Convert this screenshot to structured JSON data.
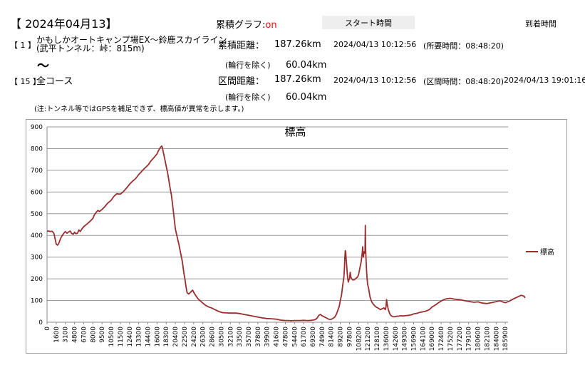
{
  "header": {
    "date_title": "【 2024年04月13】",
    "cumulative_graph_label": "累積グラフ:",
    "cumulative_graph_value": "on",
    "start_time_label": "スタート時間",
    "arrival_time_label": "到着時間"
  },
  "section_start": {
    "number": "【 1 】",
    "name_line1": "かもしかオートキャンプ場EX～鈴鹿スカイライン",
    "name_line2": "(武平トンネル：峠：815m)"
  },
  "tilde": "～",
  "section_end": {
    "number": "【 15 】",
    "name": "全コース"
  },
  "cumulative": {
    "distance_label": "累積距離：",
    "distance_value": "187.26km",
    "start_datetime": "2024/04/13 10:12:56",
    "required_time": "(所要時間：08:48:20)",
    "excl_label": "(輪行を除く)",
    "excl_value": "60.04km"
  },
  "section": {
    "distance_label": "区間距離：",
    "distance_value": "187.26km",
    "start_datetime": "2024/04/13 10:12:56",
    "section_time": "(区間時間：08:48:20)",
    "arrival_datetime": "2024/04/13 19:01:16",
    "excl_label": "(輪行を除く)",
    "excl_value": "60.04km"
  },
  "note": "(注:トンネル等ではGPSを補足できず、標高値が異常を示します。)",
  "chart_data": {
    "type": "line",
    "title": "標高",
    "xlabel": "",
    "ylabel": "",
    "ylim": [
      0,
      900
    ],
    "yticks": [
      0,
      100,
      200,
      300,
      400,
      500,
      600,
      700,
      800,
      900
    ],
    "xlim": [
      0,
      190000
    ],
    "xticks": [
      0,
      1600,
      3100,
      4800,
      6700,
      8000,
      9500,
      10500,
      11500,
      12400,
      13300,
      14400,
      16000,
      18300,
      20400,
      22500,
      24200,
      26300,
      28600,
      30500,
      32100,
      33500,
      35700,
      37800,
      39900,
      41600,
      47800,
      54400,
      61700,
      69300,
      74900,
      81400,
      89200,
      97800,
      108200,
      121200,
      128100,
      136000,
      142600,
      149300,
      156900,
      164100,
      169000,
      172400,
      175200,
      177200,
      179100,
      180600,
      182100,
      184000,
      185900
    ],
    "grid": "horizontal",
    "legend_position": "right",
    "line_color": "#9b2d2d",
    "series": [
      {
        "name": "標高",
        "points": [
          [
            0,
            420
          ],
          [
            300,
            420
          ],
          [
            600,
            418
          ],
          [
            900,
            419
          ],
          [
            1200,
            410
          ],
          [
            1400,
            385
          ],
          [
            1600,
            360
          ],
          [
            1800,
            355
          ],
          [
            2000,
            362
          ],
          [
            2300,
            385
          ],
          [
            2600,
            400
          ],
          [
            2900,
            412
          ],
          [
            3100,
            418
          ],
          [
            3400,
            410
          ],
          [
            3700,
            416
          ],
          [
            4000,
            420
          ],
          [
            4300,
            408
          ],
          [
            4600,
            406
          ],
          [
            4800,
            415
          ],
          [
            5100,
            408
          ],
          [
            5400,
            410
          ],
          [
            5700,
            425
          ],
          [
            6000,
            418
          ],
          [
            6400,
            432
          ],
          [
            6700,
            440
          ],
          [
            7000,
            448
          ],
          [
            7300,
            456
          ],
          [
            7700,
            468
          ],
          [
            8000,
            478
          ],
          [
            8200,
            492
          ],
          [
            8500,
            505
          ],
          [
            8800,
            515
          ],
          [
            9100,
            510
          ],
          [
            9500,
            520
          ],
          [
            9800,
            532
          ],
          [
            10100,
            548
          ],
          [
            10500,
            562
          ],
          [
            10800,
            580
          ],
          [
            11100,
            592
          ],
          [
            11500,
            590
          ],
          [
            11800,
            602
          ],
          [
            12100,
            618
          ],
          [
            12400,
            636
          ],
          [
            12700,
            650
          ],
          [
            13000,
            662
          ],
          [
            13300,
            680
          ],
          [
            13600,
            692
          ],
          [
            13900,
            705
          ],
          [
            14200,
            716
          ],
          [
            14500,
            726
          ],
          [
            14800,
            738
          ],
          [
            15100,
            748
          ],
          [
            15400,
            756
          ],
          [
            15700,
            766
          ],
          [
            16000,
            776
          ],
          [
            16300,
            788
          ],
          [
            16600,
            798
          ],
          [
            16900,
            807
          ],
          [
            17200,
            812
          ],
          [
            17400,
            800
          ],
          [
            17600,
            782
          ],
          [
            17900,
            755
          ],
          [
            18300,
            720
          ],
          [
            18700,
            680
          ],
          [
            19100,
            630
          ],
          [
            19500,
            585
          ],
          [
            19900,
            520
          ],
          [
            20200,
            465
          ],
          [
            20400,
            430
          ],
          [
            20800,
            395
          ],
          [
            21200,
            360
          ],
          [
            21600,
            320
          ],
          [
            22000,
            280
          ],
          [
            22300,
            235
          ],
          [
            22600,
            195
          ],
          [
            22800,
            160
          ],
          [
            23000,
            135
          ],
          [
            23300,
            130
          ],
          [
            23700,
            140
          ],
          [
            24000,
            148
          ],
          [
            24300,
            135
          ],
          [
            24700,
            122
          ],
          [
            25200,
            108
          ],
          [
            25800,
            97
          ],
          [
            26300,
            88
          ],
          [
            27000,
            78
          ],
          [
            27800,
            70
          ],
          [
            28600,
            65
          ],
          [
            29400,
            56
          ],
          [
            30200,
            48
          ],
          [
            30800,
            44
          ],
          [
            31500,
            43
          ],
          [
            32100,
            42
          ],
          [
            33000,
            42
          ],
          [
            33500,
            40
          ],
          [
            34500,
            36
          ],
          [
            35700,
            32
          ],
          [
            36800,
            28
          ],
          [
            37800,
            24
          ],
          [
            38800,
            20
          ],
          [
            39900,
            17
          ],
          [
            40700,
            16
          ],
          [
            41600,
            14
          ],
          [
            43000,
            12
          ],
          [
            44500,
            10
          ],
          [
            46000,
            9
          ],
          [
            47800,
            8
          ],
          [
            50000,
            8
          ],
          [
            52000,
            7
          ],
          [
            54400,
            8
          ],
          [
            57000,
            8
          ],
          [
            59000,
            8
          ],
          [
            61700,
            9
          ],
          [
            64000,
            8
          ],
          [
            66000,
            8
          ],
          [
            68000,
            9
          ],
          [
            69300,
            10
          ],
          [
            70800,
            12
          ],
          [
            72000,
            20
          ],
          [
            73000,
            32
          ],
          [
            74000,
            36
          ],
          [
            74900,
            30
          ],
          [
            76500,
            25
          ],
          [
            78500,
            18
          ],
          [
            80000,
            13
          ],
          [
            81400,
            13
          ],
          [
            83000,
            18
          ],
          [
            84500,
            24
          ],
          [
            86000,
            38
          ],
          [
            87000,
            54
          ],
          [
            88200,
            72
          ],
          [
            89200,
            100
          ],
          [
            90300,
            125
          ],
          [
            91200,
            160
          ],
          [
            92000,
            190
          ],
          [
            92600,
            210
          ],
          [
            93100,
            250
          ],
          [
            93500,
            300
          ],
          [
            93900,
            330
          ],
          [
            94300,
            322
          ],
          [
            94700,
            290
          ],
          [
            95200,
            260
          ],
          [
            95700,
            225
          ],
          [
            96200,
            200
          ],
          [
            96700,
            185
          ],
          [
            97200,
            195
          ],
          [
            97800,
            200
          ],
          [
            98600,
            230
          ],
          [
            99300,
            210
          ],
          [
            100200,
            200
          ],
          [
            101500,
            195
          ],
          [
            103000,
            195
          ],
          [
            104500,
            200
          ],
          [
            106000,
            205
          ],
          [
            107200,
            210
          ],
          [
            108200,
            220
          ],
          [
            109400,
            240
          ],
          [
            110600,
            260
          ],
          [
            111800,
            280
          ],
          [
            112600,
            300
          ],
          [
            113300,
            322
          ],
          [
            113900,
            348
          ],
          [
            114400,
            320
          ],
          [
            114900,
            300
          ],
          [
            115500,
            320
          ],
          [
            116200,
            325
          ],
          [
            116800,
            318
          ],
          [
            117300,
            325
          ],
          [
            117700,
            446
          ],
          [
            118100,
            340
          ],
          [
            118700,
            290
          ],
          [
            119400,
            240
          ],
          [
            120100,
            205
          ],
          [
            120800,
            180
          ],
          [
            121200,
            170
          ],
          [
            121700,
            160
          ],
          [
            122200,
            140
          ],
          [
            122800,
            118
          ],
          [
            123300,
            110
          ],
          [
            123700,
            100
          ],
          [
            124500,
            90
          ],
          [
            125500,
            82
          ],
          [
            126500,
            75
          ],
          [
            127500,
            70
          ],
          [
            128100,
            68
          ],
          [
            129500,
            64
          ],
          [
            131000,
            58
          ],
          [
            132500,
            62
          ],
          [
            134000,
            66
          ],
          [
            135300,
            58
          ],
          [
            135900,
            74
          ],
          [
            136300,
            104
          ],
          [
            136800,
            82
          ],
          [
            137500,
            60
          ],
          [
            138500,
            40
          ],
          [
            139600,
            30
          ],
          [
            140800,
            26
          ],
          [
            142000,
            25
          ],
          [
            142600,
            26
          ],
          [
            143800,
            28
          ],
          [
            145000,
            28
          ],
          [
            146500,
            30
          ],
          [
            148000,
            29
          ],
          [
            149300,
            30
          ],
          [
            151000,
            31
          ],
          [
            153000,
            32
          ],
          [
            155000,
            34
          ],
          [
            156900,
            38
          ],
          [
            158500,
            40
          ],
          [
            160000,
            42
          ],
          [
            161500,
            45
          ],
          [
            163000,
            47
          ],
          [
            164100,
            48
          ],
          [
            165300,
            50
          ],
          [
            166500,
            54
          ],
          [
            167600,
            58
          ],
          [
            168400,
            65
          ],
          [
            169000,
            70
          ],
          [
            169800,
            76
          ],
          [
            170600,
            82
          ],
          [
            171400,
            90
          ],
          [
            172400,
            98
          ],
          [
            173200,
            104
          ],
          [
            174000,
            108
          ],
          [
            175200,
            110
          ],
          [
            176200,
            106
          ],
          [
            177200,
            104
          ],
          [
            178200,
            100
          ],
          [
            179100,
            96
          ],
          [
            180000,
            92
          ],
          [
            180600,
            94
          ],
          [
            181400,
            88
          ],
          [
            182100,
            86
          ],
          [
            183000,
            90
          ],
          [
            184000,
            95
          ],
          [
            184800,
            99
          ],
          [
            185200,
            95
          ],
          [
            185900,
            90
          ],
          [
            186600,
            96
          ],
          [
            187300,
            104
          ],
          [
            188000,
            112
          ],
          [
            188600,
            118
          ],
          [
            189200,
            124
          ],
          [
            189800,
            120
          ],
          [
            190000,
            112
          ]
        ]
      }
    ]
  }
}
